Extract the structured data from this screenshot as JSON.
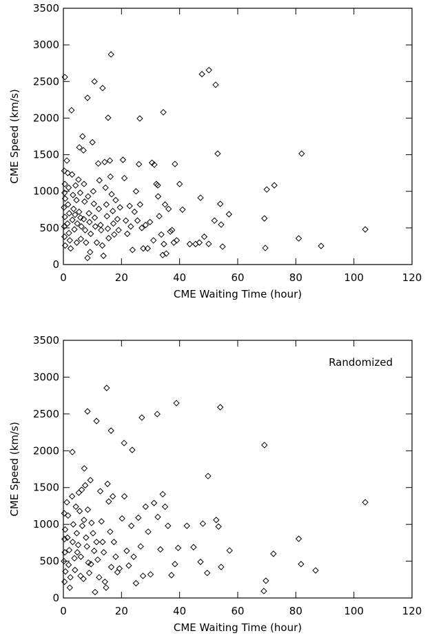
{
  "chart_data": [
    {
      "type": "scatter",
      "xlabel": "CME Waiting Time (hour)",
      "ylabel": "CME Speed (km/s)",
      "xlim": [
        0,
        120
      ],
      "ylim": [
        0,
        3500
      ],
      "xticks": [
        0,
        20,
        40,
        60,
        80,
        100,
        120
      ],
      "yticks": [
        0,
        500,
        1000,
        1500,
        2000,
        2500,
        3000,
        3500
      ],
      "color": "#000000",
      "x": [
        0.5,
        16.4,
        2.8,
        8.3,
        10.7,
        13.5,
        15.4,
        26.3,
        34.4,
        47.7,
        50.1,
        52.4,
        53.1,
        82,
        70,
        72.6,
        69.2,
        69.5,
        81,
        88.7,
        103.9,
        54,
        57,
        52,
        54.3,
        47.2,
        50,
        54.8,
        40,
        38.4,
        31.3,
        32.5,
        0.3,
        0.5,
        0.4,
        0.6,
        0.2,
        0.5,
        0.3,
        0.4,
        0.6,
        1.2,
        1.5,
        1.8,
        1.6,
        2.0,
        1.4,
        1.9,
        2.2,
        2.5,
        3.0,
        3.3,
        3.5,
        3.1,
        3.8,
        4.2,
        4.5,
        4.0,
        4.8,
        4.6,
        5.5,
        5.2,
        5.8,
        5.4,
        5.9,
        6.2,
        6.0,
        6.6,
        6.9,
        7.1,
        7.3,
        7.0,
        7.5,
        7.8,
        8.3,
        8.5,
        8.8,
        9.0,
        9.4,
        9.2,
        10.0,
        10.3,
        10.5,
        10.8,
        11.0,
        11.5,
        12.0,
        12.4,
        12.2,
        12.8,
        13.0,
        13.4,
        13.8,
        14.2,
        14.5,
        14.8,
        15.0,
        15.3,
        15.6,
        16.0,
        16.2,
        16.6,
        17.0,
        17.2,
        17.5,
        18.0,
        18.6,
        19.0,
        19.5,
        20.5,
        21.0,
        21.5,
        22.0,
        22.8,
        23.2,
        23.8,
        24.5,
        25.0,
        25.5,
        26.0,
        26.4,
        27.0,
        27.5,
        28.3,
        29.0,
        29.8,
        30.5,
        31.0,
        32.0,
        32.6,
        33.0,
        33.7,
        34.2,
        34.6,
        35.0,
        35.4,
        36.2,
        36.8,
        37.4,
        38.0,
        39.0,
        41.0,
        43.5,
        45.5,
        46.8,
        48.5
      ],
      "values": [
        2560,
        2870,
        2107,
        2277,
        2500,
        2410,
        2005,
        1995,
        2080,
        2600,
        2655,
        2455,
        1515,
        1515,
        1025,
        1082,
        630,
        226,
        357,
        254,
        480,
        828,
        687,
        600,
        546,
        912,
        282,
        245,
        1100,
        1373,
        1364,
        1082,
        1280,
        1100,
        980,
        900,
        780,
        650,
        520,
        380,
        260,
        1420,
        1250,
        1050,
        820,
        700,
        560,
        430,
        330,
        220,
        1230,
        950,
        760,
        610,
        480,
        1080,
        880,
        680,
        560,
        300,
        1600,
        1160,
        980,
        720,
        640,
        520,
        350,
        1750,
        1560,
        1100,
        860,
        620,
        470,
        300,
        90,
        930,
        700,
        580,
        420,
        170,
        1670,
        1000,
        830,
        640,
        520,
        300,
        1380,
        1150,
        760,
        540,
        470,
        260,
        120,
        1400,
        1050,
        820,
        660,
        490,
        360,
        1420,
        1200,
        960,
        730,
        560,
        410,
        880,
        620,
        470,
        780,
        1430,
        1180,
        600,
        420,
        800,
        520,
        200,
        720,
        1000,
        600,
        1370,
        820,
        500,
        220,
        540,
        220,
        580,
        1390,
        330,
        1100,
        930,
        660,
        410,
        130,
        280,
        820,
        150,
        760,
        450,
        470,
        300,
        330,
        750,
        280,
        280,
        300,
        380
      ]
    },
    {
      "type": "scatter",
      "xlabel": "CME Waiting Time (hour)",
      "ylabel": "CME Speed (km/s)",
      "annotation": "Randomized",
      "xlim": [
        0,
        120
      ],
      "ylim": [
        0,
        3500
      ],
      "xticks": [
        0,
        20,
        40,
        60,
        80,
        100,
        120
      ],
      "yticks": [
        0,
        500,
        1000,
        1500,
        2000,
        2500,
        3000,
        3500
      ],
      "color": "#000000",
      "x": [
        14.9,
        8.3,
        11.4,
        16.4,
        20.9,
        23.7,
        27,
        32.3,
        38.9,
        54,
        3.1,
        69.2,
        49.8,
        103.9,
        81,
        81.8,
        86.8,
        69.7,
        69,
        72.3,
        57.2,
        54.3,
        0.3,
        0.6,
        0.4,
        0.5,
        0.2,
        0.7,
        0.4,
        1.2,
        1.6,
        1.4,
        2.0,
        1.8,
        2.4,
        2.2,
        3.0,
        3.4,
        3.2,
        3.8,
        4.3,
        4.0,
        4.6,
        4.8,
        5.3,
        5.6,
        5.1,
        5.9,
        6.3,
        6.5,
        6.0,
        6.9,
        7.2,
        7.5,
        7.1,
        7.8,
        8.1,
        8.6,
        8.9,
        8.4,
        9.3,
        9.7,
        9.5,
        10.2,
        10.6,
        10.9,
        11.4,
        11.8,
        12.3,
        12.7,
        13.1,
        13.5,
        13.9,
        14.3,
        14.7,
        15.2,
        15.6,
        16.1,
        16.5,
        17.0,
        17.4,
        18.0,
        18.6,
        19.3,
        20.2,
        21.0,
        21.8,
        22.5,
        23.4,
        24.2,
        25.0,
        25.8,
        26.6,
        27.4,
        28.3,
        29.2,
        30.0,
        31.2,
        32.5,
        33.4,
        34.2,
        35.0,
        36.0,
        37.2,
        38.4,
        39.5,
        42.5,
        44.8,
        47.2,
        48.0,
        49.5,
        52.6,
        53.4
      ],
      "values": [
        2853,
        2535,
        2404,
        2273,
        2105,
        2011,
        2451,
        2498,
        2647,
        2591,
        1983,
        2077,
        1656,
        1300,
        804,
        460,
        374,
        234,
        94,
        600,
        645,
        421,
        1150,
        930,
        800,
        620,
        500,
        360,
        220,
        1300,
        1120,
        820,
        650,
        450,
        280,
        140,
        1380,
        1000,
        760,
        540,
        1240,
        380,
        880,
        620,
        1430,
        1180,
        720,
        300,
        1470,
        980,
        560,
        260,
        1760,
        1530,
        1060,
        820,
        700,
        480,
        340,
        1200,
        1600,
        1020,
        460,
        880,
        640,
        80,
        760,
        520,
        280,
        1450,
        1040,
        760,
        620,
        220,
        140,
        1550,
        1310,
        900,
        420,
        1380,
        760,
        560,
        350,
        400,
        1080,
        1380,
        640,
        440,
        980,
        560,
        200,
        1090,
        700,
        300,
        1240,
        900,
        320,
        1290,
        1100,
        660,
        1410,
        1240,
        980,
        310,
        460,
        680,
        980,
        690,
        490,
        1010,
        340,
        1060,
        970
      ]
    }
  ]
}
